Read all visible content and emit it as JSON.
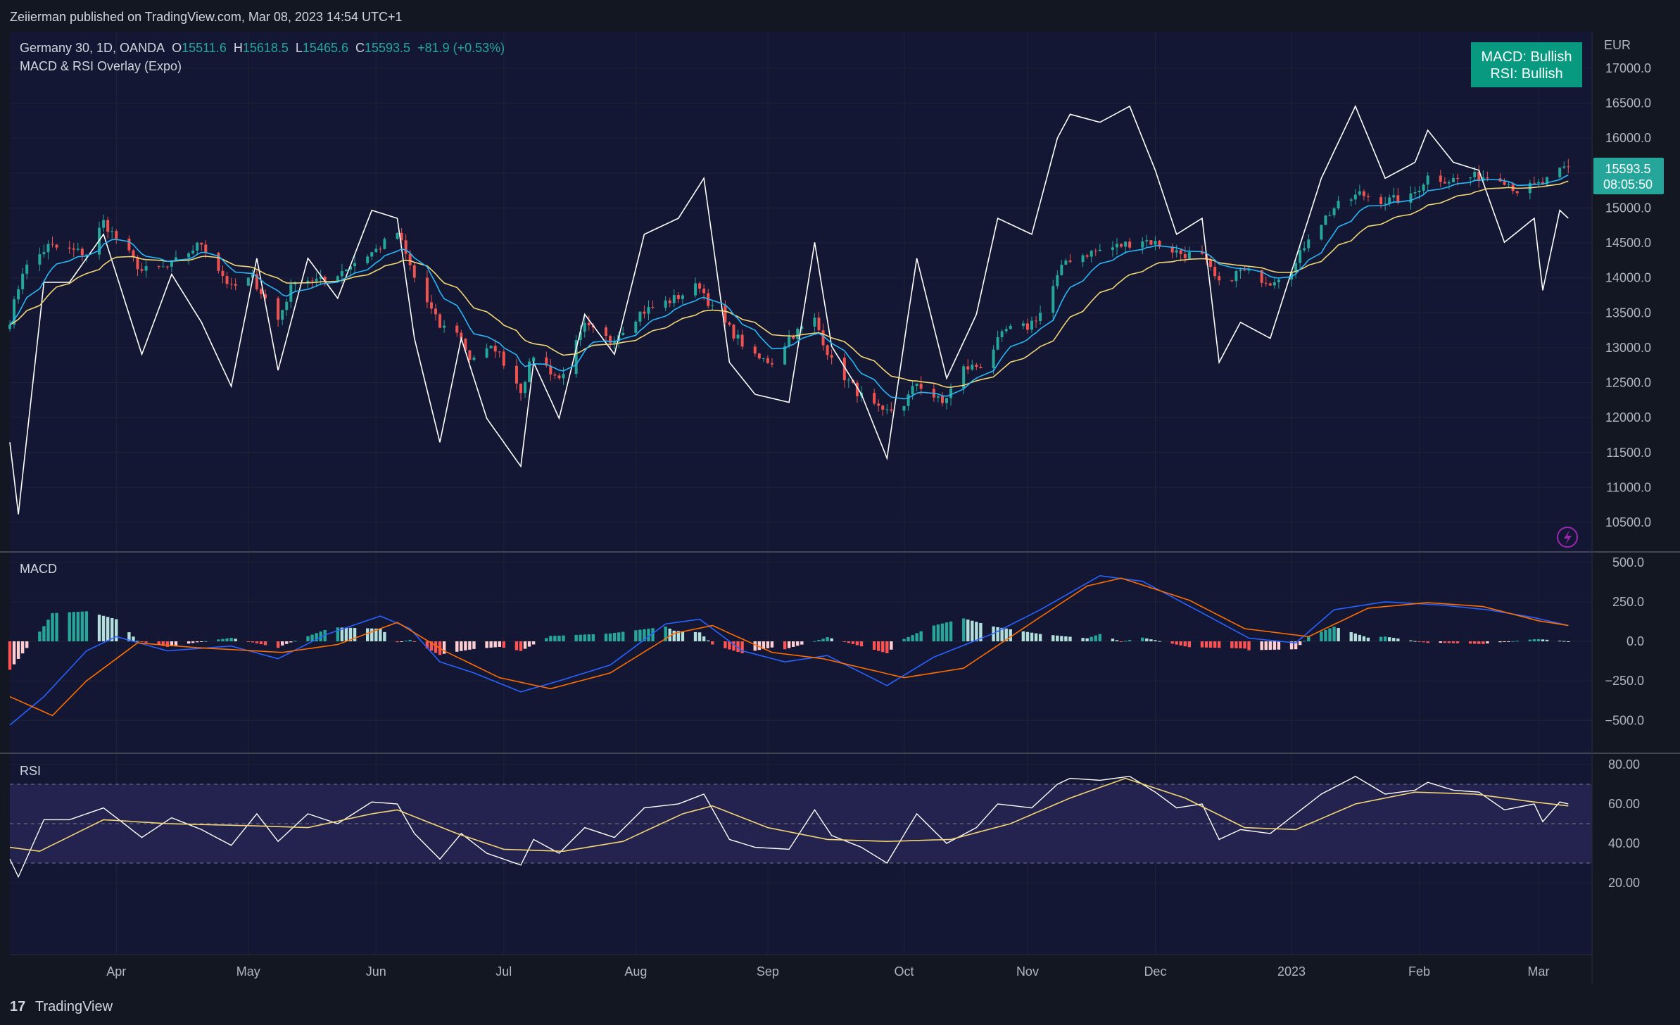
{
  "header": {
    "published": "Zeiierman published on TradingView.com, Mar 08, 2023 14:54 UTC+1"
  },
  "legend": {
    "symbol": "Germany 30, 1D, OANDA",
    "o_label": "O",
    "o": "15511.6",
    "h_label": "H",
    "h": "15618.5",
    "l_label": "L",
    "l": "15465.6",
    "c_label": "C",
    "c": "15593.5",
    "change": "+81.9 (+0.53%)",
    "indicator": "MACD & RSI Overlay (Expo)"
  },
  "status_box": {
    "line1": "MACD: Bullish",
    "line2": "RSI: Bullish"
  },
  "currency": "EUR",
  "price_tag": {
    "price": "15593.5",
    "countdown": "08:05:50"
  },
  "macd_label": "MACD",
  "rsi_label": "RSI",
  "footer": {
    "brand": "TradingView"
  },
  "colors": {
    "background": "#131722",
    "pane": "#131733",
    "grid": "#1f2335",
    "up": "#26a69a",
    "down": "#ef5350",
    "rsi_overlay": "#ffffff",
    "fast_ma": "#29b6f6",
    "slow_ma": "#f2d675",
    "green_overlay": "#2ea97a",
    "macd_line": "#2962ff",
    "signal_line": "#ff6d00",
    "status_green": "#089981",
    "rsi_band": "#24224e"
  },
  "chart_data": [
    {
      "type": "candlestick",
      "title": "Germany 30, 1D, OANDA",
      "ylabel": "EUR",
      "ylim": [
        10100,
        17500
      ],
      "yticks": [
        "17000.0",
        "16500.0",
        "16000.0",
        "15500.0",
        "15000.0",
        "14500.0",
        "14000.0",
        "13500.0",
        "13000.0",
        "12500.0",
        "12000.0",
        "11500.0",
        "11000.0",
        "10500.0"
      ],
      "xticks": [
        "Apr",
        "May",
        "Jun",
        "Jul",
        "Aug",
        "Sep",
        "Oct",
        "Nov",
        "Dec",
        "2023",
        "Feb",
        "Mar"
      ],
      "last_close": 15593.5,
      "close_anchors": [
        [
          "2022-03-07",
          13400
        ],
        [
          "2022-03-10",
          14100
        ],
        [
          "2022-03-16",
          14450
        ],
        [
          "2022-03-25",
          14350
        ],
        [
          "2022-03-29",
          14800
        ],
        [
          "2022-04-07",
          14100
        ],
        [
          "2022-04-13",
          14150
        ],
        [
          "2022-04-21",
          14500
        ],
        [
          "2022-04-28",
          13850
        ],
        [
          "2022-05-03",
          14000
        ],
        [
          "2022-05-09",
          13400
        ],
        [
          "2022-05-13",
          14000
        ],
        [
          "2022-05-20",
          13950
        ],
        [
          "2022-05-25",
          14150
        ],
        [
          "2022-06-01",
          14400
        ],
        [
          "2022-06-06",
          14650
        ],
        [
          "2022-06-10",
          14000
        ],
        [
          "2022-06-16",
          13300
        ],
        [
          "2022-06-20",
          13250
        ],
        [
          "2022-06-23",
          12850
        ],
        [
          "2022-06-29",
          13000
        ],
        [
          "2022-07-05",
          12400
        ],
        [
          "2022-07-08",
          12900
        ],
        [
          "2022-07-14",
          12550
        ],
        [
          "2022-07-20",
          13300
        ],
        [
          "2022-07-26",
          13100
        ],
        [
          "2022-08-02",
          13500
        ],
        [
          "2022-08-10",
          13700
        ],
        [
          "2022-08-16",
          13900
        ],
        [
          "2022-08-19",
          13550
        ],
        [
          "2022-08-24",
          13200
        ],
        [
          "2022-08-29",
          12850
        ],
        [
          "2022-09-02",
          12800
        ],
        [
          "2022-09-06",
          13150
        ],
        [
          "2022-09-12",
          13400
        ],
        [
          "2022-09-16",
          12800
        ],
        [
          "2022-09-23",
          12300
        ],
        [
          "2022-09-28",
          12050
        ],
        [
          "2022-10-03",
          12200
        ],
        [
          "2022-10-06",
          12500
        ],
        [
          "2022-10-12",
          12200
        ],
        [
          "2022-10-17",
          12700
        ],
        [
          "2022-10-21",
          12750
        ],
        [
          "2022-10-27",
          13250
        ],
        [
          "2022-11-01",
          13300
        ],
        [
          "2022-11-04",
          13500
        ],
        [
          "2022-11-10",
          14250
        ],
        [
          "2022-11-15",
          14350
        ],
        [
          "2022-11-22",
          14450
        ],
        [
          "2022-11-28",
          14550
        ],
        [
          "2022-12-01",
          14500
        ],
        [
          "2022-12-07",
          14350
        ],
        [
          "2022-12-12",
          14300
        ],
        [
          "2022-12-16",
          13900
        ],
        [
          "2022-12-21",
          14100
        ],
        [
          "2022-12-28",
          13950
        ],
        [
          "2023-01-03",
          14200
        ],
        [
          "2023-01-06",
          14600
        ],
        [
          "2023-01-12",
          15000
        ],
        [
          "2023-01-18",
          15200
        ],
        [
          "2023-01-24",
          15100
        ],
        [
          "2023-01-30",
          15150
        ],
        [
          "2023-02-03",
          15450
        ],
        [
          "2023-02-08",
          15400
        ],
        [
          "2023-02-14",
          15450
        ],
        [
          "2023-02-20",
          15450
        ],
        [
          "2023-02-24",
          15250
        ],
        [
          "2023-03-02",
          15350
        ],
        [
          "2023-03-08",
          15593.5
        ]
      ]
    },
    {
      "type": "line",
      "title": "MACD",
      "ylim": [
        -800,
        560
      ],
      "yticks": [
        "500.0",
        "250.0",
        "0.0",
        "−250.0",
        "−500.0"
      ],
      "series": [
        {
          "name": "macd",
          "anchors": [
            [
              "2022-03-07",
              -530
            ],
            [
              "2022-03-15",
              -350
            ],
            [
              "2022-03-25",
              -60
            ],
            [
              "2022-04-01",
              30
            ],
            [
              "2022-04-13",
              -60
            ],
            [
              "2022-04-28",
              -30
            ],
            [
              "2022-05-09",
              -110
            ],
            [
              "2022-05-20",
              40
            ],
            [
              "2022-06-02",
              160
            ],
            [
              "2022-06-09",
              80
            ],
            [
              "2022-06-16",
              -130
            ],
            [
              "2022-06-24",
              -200
            ],
            [
              "2022-07-05",
              -320
            ],
            [
              "2022-07-14",
              -250
            ],
            [
              "2022-07-26",
              -150
            ],
            [
              "2022-08-08",
              110
            ],
            [
              "2022-08-16",
              140
            ],
            [
              "2022-08-26",
              -60
            ],
            [
              "2022-09-05",
              -130
            ],
            [
              "2022-09-15",
              -90
            ],
            [
              "2022-09-29",
              -280
            ],
            [
              "2022-10-10",
              -100
            ],
            [
              "2022-10-24",
              50
            ],
            [
              "2022-11-04",
              200
            ],
            [
              "2022-11-18",
              415
            ],
            [
              "2022-11-28",
              380
            ],
            [
              "2022-12-12",
              180
            ],
            [
              "2022-12-23",
              20
            ],
            [
              "2023-01-03",
              -10
            ],
            [
              "2023-01-12",
              200
            ],
            [
              "2023-01-24",
              250
            ],
            [
              "2023-02-06",
              230
            ],
            [
              "2023-02-17",
              200
            ],
            [
              "2023-02-28",
              150
            ],
            [
              "2023-03-08",
              100
            ]
          ]
        },
        {
          "name": "signal",
          "anchors": [
            [
              "2022-03-07",
              -350
            ],
            [
              "2022-03-17",
              -470
            ],
            [
              "2022-03-25",
              -250
            ],
            [
              "2022-04-06",
              -10
            ],
            [
              "2022-04-20",
              -40
            ],
            [
              "2022-05-10",
              -70
            ],
            [
              "2022-05-23",
              -20
            ],
            [
              "2022-06-06",
              120
            ],
            [
              "2022-06-17",
              -60
            ],
            [
              "2022-06-30",
              -230
            ],
            [
              "2022-07-12",
              -300
            ],
            [
              "2022-07-26",
              -200
            ],
            [
              "2022-08-10",
              50
            ],
            [
              "2022-08-19",
              100
            ],
            [
              "2022-09-02",
              -70
            ],
            [
              "2022-09-14",
              -110
            ],
            [
              "2022-10-03",
              -230
            ],
            [
              "2022-10-17",
              -170
            ],
            [
              "2022-11-01",
              100
            ],
            [
              "2022-11-15",
              350
            ],
            [
              "2022-11-23",
              400
            ],
            [
              "2022-12-09",
              260
            ],
            [
              "2022-12-22",
              80
            ],
            [
              "2023-01-06",
              30
            ],
            [
              "2023-01-20",
              210
            ],
            [
              "2023-02-03",
              245
            ],
            [
              "2023-02-16",
              220
            ],
            [
              "2023-03-01",
              130
            ],
            [
              "2023-03-08",
              100
            ]
          ]
        }
      ]
    },
    {
      "type": "line",
      "title": "RSI",
      "ylim": [
        16,
        81
      ],
      "yticks": [
        "80.00",
        "60.00",
        "40.00",
        "20.00"
      ],
      "bands": [
        30,
        50,
        70
      ],
      "series": [
        {
          "name": "rsi",
          "anchors": [
            [
              "2022-03-07",
              32
            ],
            [
              "2022-03-09",
              23
            ],
            [
              "2022-03-15",
              52
            ],
            [
              "2022-03-21",
              52
            ],
            [
              "2022-03-29",
              58
            ],
            [
              "2022-04-07",
              43
            ],
            [
              "2022-04-14",
              53
            ],
            [
              "2022-04-21",
              47
            ],
            [
              "2022-04-28",
              39
            ],
            [
              "2022-05-04",
              55
            ],
            [
              "2022-05-09",
              41
            ],
            [
              "2022-05-16",
              55
            ],
            [
              "2022-05-23",
              50
            ],
            [
              "2022-05-31",
              61
            ],
            [
              "2022-06-06",
              60
            ],
            [
              "2022-06-10",
              45
            ],
            [
              "2022-06-16",
              32
            ],
            [
              "2022-06-21",
              45
            ],
            [
              "2022-06-27",
              35
            ],
            [
              "2022-07-05",
              29
            ],
            [
              "2022-07-08",
              42
            ],
            [
              "2022-07-14",
              35
            ],
            [
              "2022-07-20",
              48
            ],
            [
              "2022-07-27",
              43
            ],
            [
              "2022-08-03",
              58
            ],
            [
              "2022-08-11",
              60
            ],
            [
              "2022-08-17",
              65
            ],
            [
              "2022-08-23",
              42
            ],
            [
              "2022-08-29",
              38
            ],
            [
              "2022-09-06",
              37
            ],
            [
              "2022-09-12",
              57
            ],
            [
              "2022-09-16",
              44
            ],
            [
              "2022-09-23",
              38
            ],
            [
              "2022-09-29",
              30
            ],
            [
              "2022-10-04",
              48
            ],
            [
              "2022-10-06",
              55
            ],
            [
              "2022-10-13",
              40
            ],
            [
              "2022-10-20",
              48
            ],
            [
              "2022-10-25",
              60
            ],
            [
              "2022-11-02",
              58
            ],
            [
              "2022-11-08",
              70
            ],
            [
              "2022-11-11",
              73
            ],
            [
              "2022-11-18",
              72
            ],
            [
              "2022-11-25",
              74
            ],
            [
              "2022-12-01",
              66
            ],
            [
              "2022-12-06",
              58
            ],
            [
              "2022-12-12",
              60
            ],
            [
              "2022-12-16",
              42
            ],
            [
              "2022-12-21",
              47
            ],
            [
              "2022-12-28",
              45
            ],
            [
              "2023-01-03",
              55
            ],
            [
              "2023-01-09",
              65
            ],
            [
              "2023-01-17",
              74
            ],
            [
              "2023-01-24",
              65
            ],
            [
              "2023-01-31",
              67
            ],
            [
              "2023-02-03",
              71
            ],
            [
              "2023-02-09",
              67
            ],
            [
              "2023-02-15",
              66
            ],
            [
              "2023-02-21",
              57
            ],
            [
              "2023-02-28",
              60
            ],
            [
              "2023-03-02",
              51
            ],
            [
              "2023-03-06",
              61
            ],
            [
              "2023-03-08",
              60
            ]
          ]
        },
        {
          "name": "rsi_ma",
          "anchors": [
            [
              "2022-03-07",
              38
            ],
            [
              "2022-03-14",
              36
            ],
            [
              "2022-03-29",
              52
            ],
            [
              "2022-04-13",
              50
            ],
            [
              "2022-05-02",
              49
            ],
            [
              "2022-05-16",
              48
            ],
            [
              "2022-05-31",
              55
            ],
            [
              "2022-06-06",
              57
            ],
            [
              "2022-06-20",
              45
            ],
            [
              "2022-07-01",
              37
            ],
            [
              "2022-07-15",
              36
            ],
            [
              "2022-07-29",
              41
            ],
            [
              "2022-08-12",
              55
            ],
            [
              "2022-08-19",
              59
            ],
            [
              "2022-09-01",
              48
            ],
            [
              "2022-09-15",
              42
            ],
            [
              "2022-09-29",
              41
            ],
            [
              "2022-10-14",
              42
            ],
            [
              "2022-10-28",
              50
            ],
            [
              "2022-11-11",
              63
            ],
            [
              "2022-11-24",
              73
            ],
            [
              "2022-12-08",
              63
            ],
            [
              "2022-12-22",
              48
            ],
            [
              "2023-01-03",
              47
            ],
            [
              "2023-01-17",
              60
            ],
            [
              "2023-01-31",
              66
            ],
            [
              "2023-02-14",
              65
            ],
            [
              "2023-02-28",
              61
            ],
            [
              "2023-03-08",
              59
            ]
          ]
        }
      ]
    }
  ]
}
